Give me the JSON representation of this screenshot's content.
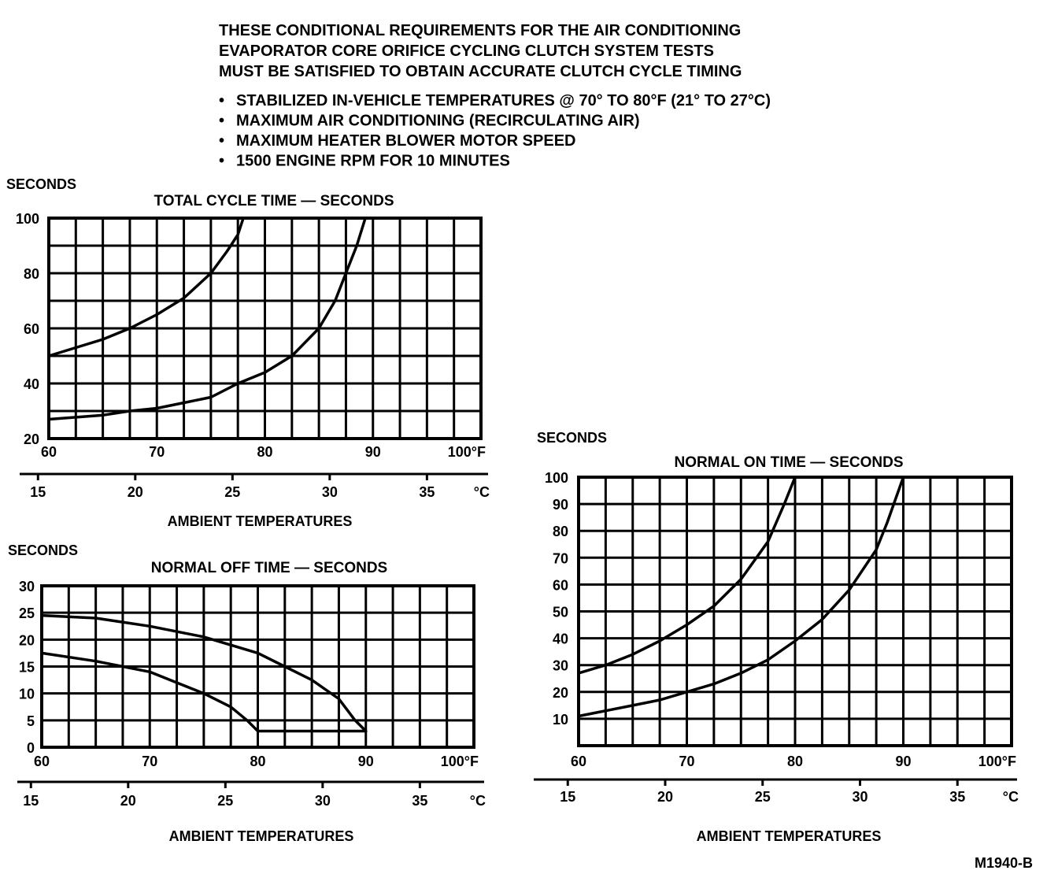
{
  "header": {
    "lines": [
      "THESE CONDITIONAL REQUIREMENTS FOR THE AIR CONDITIONING",
      "EVAPORATOR CORE ORIFICE CYCLING CLUTCH SYSTEM TESTS",
      "MUST BE SATISFIED TO OBTAIN ACCURATE CLUTCH CYCLE TIMING"
    ],
    "bullets": [
      "STABILIZED IN-VEHICLE TEMPERATURES @ 70° TO 80°F (21° TO 27°C)",
      "MAXIMUM AIR CONDITIONING (RECIRCULATING AIR)",
      "MAXIMUM HEATER BLOWER MOTOR SPEED",
      "1500 ENGINE RPM FOR 10 MINUTES"
    ],
    "bullet_symbol": "•"
  },
  "figure_code": "M1940-B",
  "chart_data": [
    {
      "type": "line",
      "title": "TOTAL CYCLE TIME — SECONDS",
      "ylabel": "SECONDS",
      "xlabel": "AMBIENT TEMPERATURES",
      "xlim": [
        60,
        100
      ],
      "ylim": [
        20,
        100
      ],
      "grid": true,
      "x_tick_labels": [
        "60",
        "70",
        "80",
        "90",
        "100°F"
      ],
      "x_ticks": [
        60,
        70,
        80,
        90,
        100
      ],
      "y_tick_labels": [
        "100",
        "80",
        "60",
        "40",
        "20"
      ],
      "y_ticks": [
        100,
        80,
        60,
        40,
        20
      ],
      "y_grid_step": 10,
      "celsius_tick_labels": [
        "15",
        "20",
        "25",
        "30",
        "35",
        "°C"
      ],
      "celsius_ticks": [
        15,
        20,
        25,
        30,
        35
      ],
      "series": [
        {
          "x": [
            60,
            62.5,
            65,
            67.5,
            70,
            72.5,
            75,
            76.5,
            77.5,
            78
          ],
          "y": [
            50,
            53,
            56,
            60,
            65,
            71,
            80,
            88,
            94,
            100
          ]
        },
        {
          "x": [
            60,
            65,
            67.5,
            70,
            72.5,
            75,
            77.5,
            80,
            82.5,
            84,
            85,
            86.5,
            87.5,
            88.5,
            89.3
          ],
          "y": [
            27,
            28.5,
            30,
            31,
            33,
            35,
            40,
            44,
            50,
            56,
            60,
            70,
            80,
            90,
            100
          ]
        }
      ]
    },
    {
      "type": "line",
      "title": "NORMAL OFF TIME — SECONDS",
      "ylabel": "SECONDS",
      "xlabel": "AMBIENT TEMPERATURES",
      "xlim": [
        60,
        100
      ],
      "ylim": [
        0,
        30
      ],
      "grid": true,
      "x_tick_labels": [
        "60",
        "70",
        "80",
        "90",
        "100°F"
      ],
      "x_ticks": [
        60,
        70,
        80,
        90,
        100
      ],
      "y_tick_labels": [
        "30",
        "25",
        "20",
        "15",
        "10",
        "5",
        "0"
      ],
      "y_ticks": [
        30,
        25,
        20,
        15,
        10,
        5,
        0
      ],
      "y_grid_step": 5,
      "celsius_tick_labels": [
        "15",
        "20",
        "25",
        "30",
        "35",
        "°C"
      ],
      "celsius_ticks": [
        15,
        20,
        25,
        30,
        35
      ],
      "series": [
        {
          "x": [
            60,
            65,
            70,
            75,
            77.5,
            80,
            82.5,
            85,
            87.5,
            89,
            90,
            80
          ],
          "y": [
            24.5,
            24,
            22.5,
            20.5,
            19,
            17.5,
            15,
            12.5,
            9,
            5,
            3,
            3
          ]
        },
        {
          "x": [
            60,
            65,
            67.5,
            70,
            72.5,
            75,
            77.5,
            79,
            80
          ],
          "y": [
            17.5,
            16,
            15,
            14,
            12,
            10,
            7.5,
            5,
            3
          ]
        }
      ]
    },
    {
      "type": "line",
      "title": "NORMAL ON TIME — SECONDS",
      "ylabel": "SECONDS",
      "xlabel": "AMBIENT TEMPERATURES",
      "xlim": [
        60,
        100
      ],
      "ylim": [
        0,
        100
      ],
      "grid": true,
      "x_tick_labels": [
        "60",
        "70",
        "80",
        "90",
        "100°F"
      ],
      "x_ticks": [
        60,
        70,
        80,
        90,
        100
      ],
      "y_tick_labels": [
        "100",
        "90",
        "80",
        "70",
        "60",
        "50",
        "40",
        "30",
        "20",
        "10"
      ],
      "y_ticks": [
        100,
        90,
        80,
        70,
        60,
        50,
        40,
        30,
        20,
        10
      ],
      "y_grid_step": 10,
      "celsius_tick_labels": [
        "15",
        "20",
        "25",
        "30",
        "35",
        "°C"
      ],
      "celsius_ticks": [
        15,
        20,
        25,
        30,
        35
      ],
      "series": [
        {
          "x": [
            60,
            62.5,
            65,
            67.5,
            70,
            72.5,
            75,
            77.5,
            79,
            80
          ],
          "y": [
            27,
            30,
            34,
            39,
            45,
            52,
            62,
            76,
            90,
            100
          ]
        },
        {
          "x": [
            60,
            62.5,
            65,
            67.5,
            70,
            72.5,
            75,
            77.5,
            80,
            82.5,
            85,
            87.5,
            88.5,
            90
          ],
          "y": [
            11,
            13,
            15,
            17,
            20,
            23,
            27,
            32,
            39,
            47,
            58,
            73,
            83,
            100
          ]
        }
      ]
    }
  ]
}
